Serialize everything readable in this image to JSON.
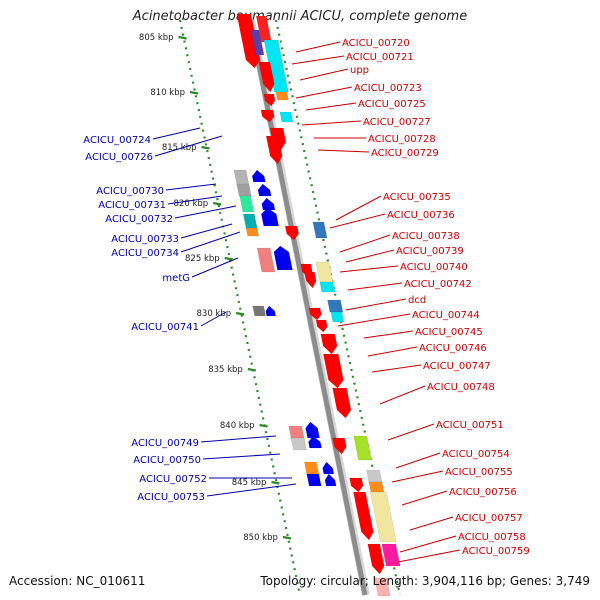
{
  "title": "Acinetobacter baumannii ACICU, complete genome",
  "footer": {
    "accession": "Accession: NC_010611",
    "topology": "Topology: circular; Length: 3,904,116 bp; Genes: 3,749"
  },
  "colors": {
    "forward_gene": "#ff0000",
    "reverse_gene": "#0000ee",
    "forward_label": "#cc0000",
    "reverse_label": "#0000aa",
    "backbone": "#8c8c8c",
    "tick": "#2a8a2a"
  },
  "ticks": [
    "805 kbp",
    "810 kbp",
    "815 kbp",
    "820 kbp",
    "825 kbp",
    "830 kbp",
    "835 kbp",
    "840 kbp",
    "845 kbp",
    "850 kbp"
  ],
  "labels_forward": [
    "ACICU_00720",
    "ACICU_00721",
    "upp",
    "ACICU_00723",
    "ACICU_00725",
    "ACICU_00727",
    "ACICU_00728",
    "ACICU_00729",
    "ACICU_00735",
    "ACICU_00736",
    "ACICU_00738",
    "ACICU_00739",
    "ACICU_00740",
    "ACICU_00742",
    "dcd",
    "ACICU_00744",
    "ACICU_00745",
    "ACICU_00746",
    "ACICU_00747",
    "ACICU_00748",
    "ACICU_00751",
    "ACICU_00754",
    "ACICU_00755",
    "ACICU_00756",
    "ACICU_00757",
    "ACICU_00758",
    "ACICU_00759"
  ],
  "labels_reverse": [
    "ACICU_00724",
    "ACICU_00726",
    "ACICU_00730",
    "ACICU_00731",
    "ACICU_00732",
    "ACICU_00733",
    "ACICU_00734",
    "metG",
    "ACICU_00741",
    "ACICU_00749",
    "ACICU_00750",
    "ACICU_00752",
    "ACICU_00753"
  ]
}
